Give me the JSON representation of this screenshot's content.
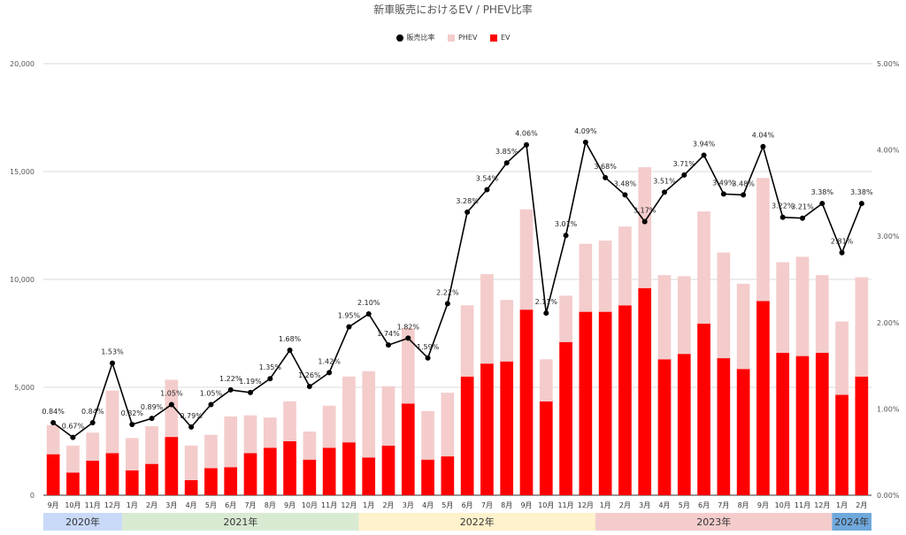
{
  "chart_data": {
    "type": "bar",
    "title": "新車販売におけるEV / PHEV比率",
    "stacked": true,
    "legend_position": "top",
    "categories": [
      "9月",
      "10月",
      "11月",
      "12月",
      "1月",
      "2月",
      "3月",
      "4月",
      "5月",
      "6月",
      "7月",
      "8月",
      "9月",
      "10月",
      "11月",
      "12月",
      "1月",
      "2月",
      "3月",
      "4月",
      "5月",
      "6月",
      "7月",
      "8月",
      "9月",
      "10月",
      "11月",
      "12月",
      "1月",
      "2月",
      "3月",
      "4月",
      "5月",
      "6月",
      "7月",
      "8月",
      "9月",
      "10月",
      "11月",
      "12月",
      "1月",
      "2月"
    ],
    "year_groups": [
      {
        "label": "2020年",
        "start": 0,
        "count": 4,
        "color": "#c9daf8"
      },
      {
        "label": "2021年",
        "start": 4,
        "count": 12,
        "color": "#d9ead3"
      },
      {
        "label": "2022年",
        "start": 16,
        "count": 12,
        "color": "#fff2cc"
      },
      {
        "label": "2023年",
        "start": 28,
        "count": 12,
        "color": "#f4cccc"
      },
      {
        "label": "2024年",
        "start": 40,
        "count": 2,
        "color": "#6fa8dc"
      }
    ],
    "series": [
      {
        "name": "EV",
        "kind": "bar",
        "axis": "left",
        "color": "#ff0000",
        "values": [
          1900,
          1050,
          1600,
          1950,
          1150,
          1450,
          2700,
          700,
          1250,
          1300,
          1950,
          2200,
          2500,
          1650,
          2200,
          2450,
          1750,
          2300,
          4250,
          1650,
          1800,
          5500,
          6100,
          6200,
          8600,
          4350,
          7100,
          8500,
          8500,
          8800,
          9600,
          6300,
          6550,
          7950,
          6350,
          5850,
          9000,
          6600,
          6450,
          6600,
          4650,
          5500
        ]
      },
      {
        "name": "PHEV",
        "kind": "bar",
        "axis": "left",
        "color": "#f4cccc",
        "values": [
          1350,
          1250,
          1300,
          2900,
          1500,
          1750,
          2650,
          1600,
          1550,
          2350,
          1750,
          1400,
          1850,
          1300,
          1950,
          3050,
          4000,
          2750,
          3500,
          2250,
          2950,
          3300,
          4150,
          2850,
          4650,
          1950,
          2150,
          3150,
          3300,
          3650,
          5600,
          3900,
          3600,
          5200,
          4900,
          3950,
          5700,
          4200,
          4600,
          3600,
          3400,
          4600
        ]
      },
      {
        "name": "販売比率",
        "kind": "line",
        "axis": "right",
        "color": "#000000",
        "values": [
          0.84,
          0.67,
          0.84,
          1.53,
          0.82,
          0.89,
          1.05,
          0.79,
          1.05,
          1.22,
          1.19,
          1.35,
          1.68,
          1.26,
          1.42,
          1.95,
          2.1,
          1.74,
          1.82,
          1.59,
          2.22,
          3.28,
          3.54,
          3.85,
          4.06,
          2.11,
          3.01,
          4.09,
          3.68,
          3.48,
          3.17,
          3.51,
          3.71,
          3.94,
          3.49,
          3.48,
          4.04,
          3.22,
          3.21,
          3.38,
          2.81,
          3.38
        ]
      }
    ],
    "data_labels": [
      {
        "index": 0,
        "text": "0.84%"
      },
      {
        "index": 1,
        "text": "0.67%"
      },
      {
        "index": 2,
        "text": "0.84%"
      },
      {
        "index": 3,
        "text": "1.53%"
      },
      {
        "index": 4,
        "text": "0.82%"
      },
      {
        "index": 5,
        "text": "0.89%"
      },
      {
        "index": 6,
        "text": "1.05%"
      },
      {
        "index": 7,
        "text": "0.79%"
      },
      {
        "index": 8,
        "text": "1.05%"
      },
      {
        "index": 9,
        "text": "1.22%"
      },
      {
        "index": 10,
        "text": "1.19%"
      },
      {
        "index": 11,
        "text": "1.35%"
      },
      {
        "index": 12,
        "text": "1.68%"
      },
      {
        "index": 13,
        "text": "1.26%"
      },
      {
        "index": 14,
        "text": "1.42%"
      },
      {
        "index": 15,
        "text": "1.95%"
      },
      {
        "index": 16,
        "text": "2.10%"
      },
      {
        "index": 17,
        "text": "1.74%"
      },
      {
        "index": 18,
        "text": "1.82%"
      },
      {
        "index": 19,
        "text": "1.59%"
      },
      {
        "index": 20,
        "text": "2.22%"
      },
      {
        "index": 21,
        "text": "3.28%"
      },
      {
        "index": 22,
        "text": "3.54%"
      },
      {
        "index": 23,
        "text": "3.85%"
      },
      {
        "index": 24,
        "text": "4.06%"
      },
      {
        "index": 25,
        "text": "2.11%"
      },
      {
        "index": 26,
        "text": "3.01%"
      },
      {
        "index": 27,
        "text": "4.09%"
      },
      {
        "index": 28,
        "text": "3.68%"
      },
      {
        "index": 29,
        "text": "3.48%"
      },
      {
        "index": 30,
        "text": "3.17%"
      },
      {
        "index": 31,
        "text": "3.51%"
      },
      {
        "index": 32,
        "text": "3.71%"
      },
      {
        "index": 33,
        "text": "3.94%"
      },
      {
        "index": 34,
        "text": "3.49%"
      },
      {
        "index": 35,
        "text": "3.48%"
      },
      {
        "index": 36,
        "text": "4.04%"
      },
      {
        "index": 37,
        "text": "3.22%"
      },
      {
        "index": 38,
        "text": "3.21%"
      },
      {
        "index": 39,
        "text": "3.38%"
      },
      {
        "index": 40,
        "text": "2.81%"
      },
      {
        "index": 41,
        "text": "3.38%"
      }
    ],
    "y_left": {
      "min": 0,
      "max": 20000,
      "ticks": [
        0,
        5000,
        10000,
        15000,
        20000
      ],
      "tick_labels": [
        "0",
        "5,000",
        "10,000",
        "15,000",
        "20,000"
      ]
    },
    "y_right": {
      "min": 0,
      "max": 5,
      "ticks": [
        0,
        1,
        2,
        3,
        4,
        5
      ],
      "tick_labels": [
        "0.00%",
        "1.00%",
        "2.00%",
        "3.00%",
        "4.00%",
        "5.00%"
      ]
    },
    "grid": true
  }
}
